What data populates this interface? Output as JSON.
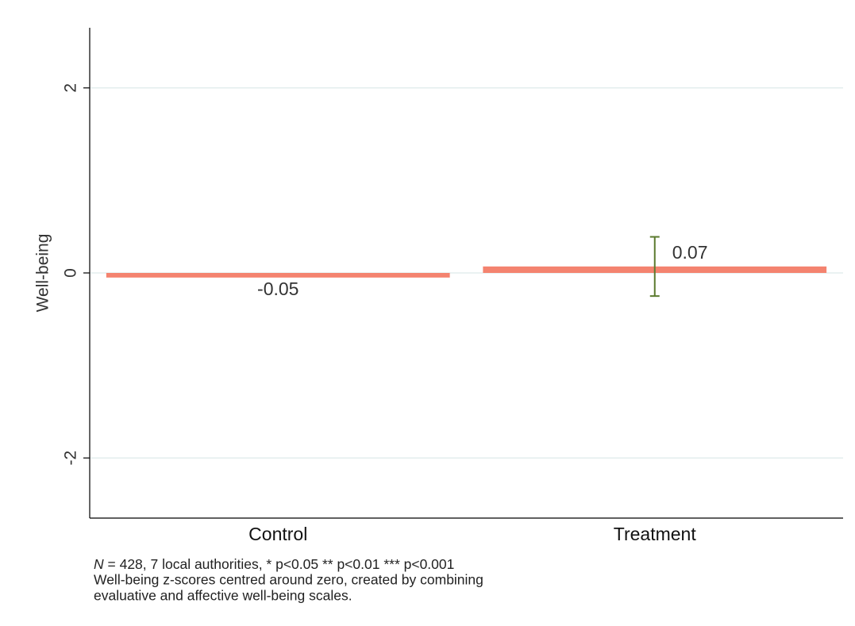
{
  "chart_data": {
    "type": "bar",
    "y_label": "Well-being",
    "categories": [
      "Control",
      "Treatment"
    ],
    "values": [
      -0.05,
      0.07
    ],
    "errors": [
      null,
      0.32
    ],
    "color": "#f4836f",
    "error_color": "#5b7a2e",
    "ylim": [
      -2.65,
      2.65
    ],
    "yticks": [
      -2,
      0,
      2
    ],
    "grid": true,
    "note_italic": "N",
    "note_lines": [
      " = 428, 7 local authorities, * p<0.05 ** p<0.01 *** p<0.001",
      "Well-being z-scores centred around zero, created by combining",
      "evaluative and affective well-being scales."
    ]
  }
}
